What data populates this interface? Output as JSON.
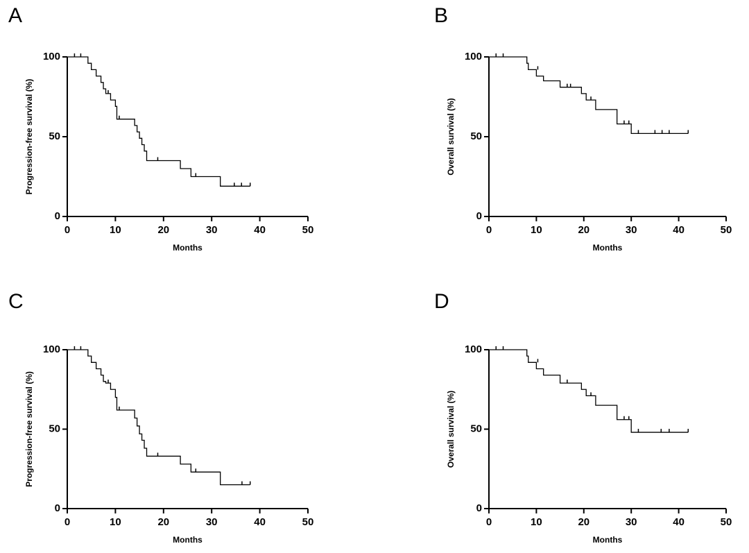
{
  "chart_data": [
    {
      "type": "step",
      "panel": "A",
      "x_label": "Months",
      "y_label": "Progression-free survival (%)",
      "color": "#000000",
      "xlim": [
        0,
        50
      ],
      "xticks": [
        0,
        10,
        20,
        30,
        40,
        50
      ],
      "ylim": [
        0,
        100
      ],
      "yticks": [
        0,
        50,
        100
      ],
      "x": [
        0,
        4.3,
        5,
        6,
        7,
        7.5,
        8,
        9,
        10,
        10.3,
        14,
        14.5,
        15,
        15.5,
        16,
        16.5,
        23.5,
        25.7,
        31.8,
        38
      ],
      "values": [
        100,
        96,
        92,
        88,
        84,
        80,
        77,
        73,
        69,
        61,
        57,
        53,
        49,
        45,
        41,
        35,
        30,
        25,
        19,
        19
      ],
      "censor_x": [
        1.5,
        2.8,
        8.5,
        10.8,
        18.8,
        26.7,
        34.7,
        36.2,
        38
      ],
      "censor_values": [
        100,
        100,
        77,
        61,
        35,
        25,
        19,
        19,
        19
      ]
    },
    {
      "type": "step",
      "panel": "B",
      "x_label": "Months",
      "y_label": "Overall survival (%)",
      "color": "#000000",
      "xlim": [
        0,
        50
      ],
      "xticks": [
        0,
        10,
        20,
        30,
        40,
        50
      ],
      "ylim": [
        0,
        100
      ],
      "yticks": [
        0,
        50,
        100
      ],
      "x": [
        0,
        8,
        8.3,
        10,
        11.5,
        15,
        19.5,
        20.5,
        22.5,
        27,
        30,
        42
      ],
      "values": [
        100,
        96,
        92,
        88,
        85,
        81,
        77,
        73,
        67,
        58,
        52,
        52
      ],
      "censor_x": [
        1.5,
        3,
        10.3,
        16.5,
        17.2,
        21.5,
        28.5,
        29.5,
        31.5,
        35,
        36.5,
        38,
        42
      ],
      "censor_values": [
        100,
        100,
        92,
        81,
        81,
        73,
        58,
        58,
        52,
        52,
        52,
        52,
        52
      ]
    },
    {
      "type": "step",
      "panel": "C",
      "x_label": "Months",
      "y_label": "Progression-free survival (%)",
      "color": "#000000",
      "xlim": [
        0,
        50
      ],
      "xticks": [
        0,
        10,
        20,
        30,
        40,
        50
      ],
      "ylim": [
        0,
        100
      ],
      "yticks": [
        0,
        50,
        100
      ],
      "x": [
        0,
        4.3,
        5,
        6,
        7,
        7.5,
        8,
        9,
        10,
        10.3,
        14,
        14.5,
        15,
        15.5,
        16,
        16.5,
        23.5,
        25.7,
        31.8,
        38
      ],
      "values": [
        100,
        96,
        92,
        88,
        84,
        80,
        79,
        75,
        70,
        62,
        57,
        52,
        47,
        43,
        38,
        33,
        28,
        23,
        15,
        15
      ],
      "censor_x": [
        1.5,
        2.8,
        8.5,
        10.8,
        18.8,
        26.7,
        36.3,
        38
      ],
      "censor_values": [
        100,
        100,
        79,
        62,
        33,
        23,
        15,
        15
      ]
    },
    {
      "type": "step",
      "panel": "D",
      "x_label": "Months",
      "y_label": "Overall survival (%)",
      "color": "#000000",
      "xlim": [
        0,
        50
      ],
      "xticks": [
        0,
        10,
        20,
        30,
        40,
        50
      ],
      "ylim": [
        0,
        100
      ],
      "yticks": [
        0,
        50,
        100
      ],
      "x": [
        0,
        8,
        8.3,
        10,
        11.5,
        15,
        19.5,
        20.5,
        22.5,
        27,
        30,
        42
      ],
      "values": [
        100,
        96,
        92,
        88,
        84,
        79,
        75,
        71,
        65,
        56,
        48,
        48
      ],
      "censor_x": [
        1.5,
        3,
        10.3,
        16.5,
        21.5,
        28.5,
        29.5,
        31.5,
        36.3,
        38,
        42
      ],
      "censor_values": [
        100,
        100,
        92,
        79,
        71,
        56,
        56,
        48,
        48,
        48,
        48
      ]
    }
  ]
}
